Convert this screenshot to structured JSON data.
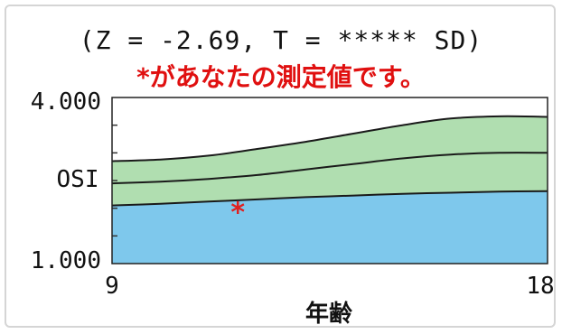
{
  "header": {
    "subtitle": "(Z = -2.69, T = ***** SD)",
    "note": "*があなたの測定値です。"
  },
  "chart_data": {
    "type": "area",
    "ylabel": "OSI",
    "xlabel": "年齢",
    "x_ticks": [
      "9",
      "18"
    ],
    "y_ticks": [
      "4.000",
      "1.000"
    ],
    "xlim": [
      9,
      18
    ],
    "ylim": [
      1.0,
      4.0
    ],
    "grid": false,
    "colors": {
      "lower_band": "#7ec8ec",
      "upper_band": "#b0deb0",
      "lines": "#1a1a1a",
      "marker": "#e02020"
    },
    "series": [
      {
        "x": [
          9,
          10,
          11,
          12,
          13,
          14,
          15,
          16,
          17,
          18
        ],
        "values": [
          2.05,
          2.08,
          2.12,
          2.16,
          2.2,
          2.23,
          2.26,
          2.28,
          2.3,
          2.31
        ]
      },
      {
        "x": [
          9,
          10,
          11,
          12,
          13,
          14,
          15,
          16,
          17,
          18
        ],
        "values": [
          2.45,
          2.48,
          2.53,
          2.6,
          2.7,
          2.8,
          2.9,
          2.97,
          3.0,
          3.0
        ]
      },
      {
        "x": [
          9,
          10,
          11,
          12,
          13,
          14,
          15,
          16,
          17,
          18
        ],
        "values": [
          2.85,
          2.88,
          2.95,
          3.07,
          3.2,
          3.35,
          3.5,
          3.62,
          3.66,
          3.65
        ]
      }
    ],
    "measurement": {
      "x": 11.6,
      "y": 1.95,
      "symbol": "*"
    }
  }
}
